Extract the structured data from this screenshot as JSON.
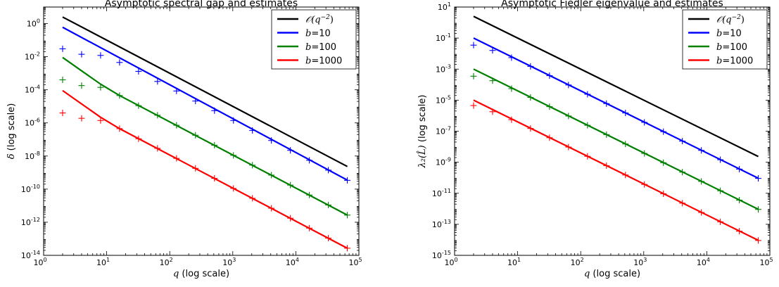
{
  "chart_data": [
    {
      "type": "line",
      "title": "Asymptotic spectral gap and estimates",
      "xlabel_var": "q",
      "xlabel_suffix": " (log scale)",
      "ylabel_var": "δ",
      "ylabel_suffix": " (log scale)",
      "xscale": "log",
      "yscale": "log",
      "xlim": [
        1,
        100000
      ],
      "ylim": [
        1e-14,
        10
      ],
      "x_ticks": [
        1,
        10,
        100,
        1000,
        10000,
        100000
      ],
      "x_tick_exps": [
        "0",
        "1",
        "2",
        "3",
        "4",
        "5"
      ],
      "y_ticks": [
        1,
        0.01,
        0.0001,
        1e-06,
        1e-08,
        1e-10,
        1e-12,
        1e-14
      ],
      "y_tick_exps": [
        "0",
        "-2",
        "-4",
        "-6",
        "-8",
        "-10",
        "-12",
        "-14"
      ],
      "legend_position": "top-right",
      "series": [
        {
          "name": "O(q^-2)",
          "legend_main": "𝒪(q",
          "legend_sup": "−2",
          "legend_tail": ")",
          "color": "#000000",
          "kind": "line",
          "x": [
            2,
            65536
          ],
          "y": [
            2.5,
            2.33e-09
          ]
        },
        {
          "name": "b=10",
          "legend_main": "b",
          "legend_sup": "",
          "legend_tail": "=10",
          "color": "#0000ff",
          "kind": "line",
          "x": [
            2,
            65536
          ],
          "y": [
            0.6,
            3.5e-10
          ]
        },
        {
          "name": "b=100",
          "legend_main": "b",
          "legend_sup": "",
          "legend_tail": "=100",
          "color": "#008000",
          "kind": "line",
          "x": [
            2,
            4,
            8,
            16,
            65536
          ],
          "y": [
            0.009,
            0.0014,
            0.00022,
            4.5e-05,
            2.7e-12
          ]
        },
        {
          "name": "b=1000",
          "legend_main": "b",
          "legend_sup": "",
          "legend_tail": "=1000",
          "color": "#ff0000",
          "kind": "line",
          "x": [
            2,
            4,
            8,
            16,
            65536
          ],
          "y": [
            9e-05,
            1.4e-05,
            2.2e-06,
            4.5e-07,
            2.7e-14
          ]
        }
      ],
      "markers": [
        {
          "color": "#0000ff",
          "x": [
            2,
            4,
            8,
            16,
            32,
            64,
            128,
            256,
            512,
            1024,
            2048,
            4096,
            8192,
            16384,
            32768,
            65536
          ],
          "y": [
            0.03,
            0.014,
            0.012,
            0.0045,
            0.0013,
            0.00032,
            8.5e-05,
            2.1e-05,
            5.5e-06,
            1.4e-06,
            3.5e-07,
            8.7e-08,
            2.2e-08,
            5.5e-09,
            1.4e-09,
            3.4e-10
          ]
        },
        {
          "color": "#008000",
          "x": [
            2,
            4,
            8,
            16,
            32,
            64,
            128,
            256,
            512,
            1024,
            2048,
            4096,
            8192,
            16384,
            32768,
            65536
          ],
          "y": [
            0.0004,
            0.00018,
            0.00014,
            4.5e-05,
            1.1e-05,
            2.9e-06,
            7.2e-07,
            1.8e-07,
            4.5e-08,
            1.1e-08,
            2.8e-09,
            7e-10,
            1.75e-10,
            4.4e-11,
            1.1e-11,
            2.7e-12
          ]
        },
        {
          "color": "#ff0000",
          "x": [
            2,
            4,
            8,
            16,
            32,
            64,
            128,
            256,
            512,
            1024,
            2048,
            4096,
            8192,
            16384,
            32768,
            65536
          ],
          "y": [
            4e-06,
            1.9e-06,
            1.4e-06,
            4.5e-07,
            1.1e-07,
            2.9e-08,
            7.2e-09,
            1.8e-09,
            4.5e-10,
            1.1e-10,
            2.8e-11,
            7e-12,
            1.75e-12,
            4.4e-13,
            1.1e-13,
            2.7e-14
          ]
        }
      ]
    },
    {
      "type": "line",
      "title": "Asymptotic Fiedler eigenvalue and estimates",
      "xlabel_var": "q",
      "xlabel_suffix": " (log scale)",
      "ylabel_var": "λ₂(L̂)",
      "ylabel_suffix": " (log scale)",
      "xscale": "log",
      "yscale": "log",
      "xlim": [
        1,
        100000
      ],
      "ylim": [
        1e-15,
        10
      ],
      "x_ticks": [
        1,
        10,
        100,
        1000,
        10000,
        100000
      ],
      "x_tick_exps": [
        "0",
        "1",
        "2",
        "3",
        "4",
        "5"
      ],
      "y_ticks": [
        10,
        0.1,
        0.001,
        1e-05,
        1e-07,
        1e-09,
        1e-11,
        1e-13,
        1e-15
      ],
      "y_tick_exps": [
        "1",
        "-1",
        "-3",
        "-5",
        "-7",
        "-9",
        "-11",
        "-13",
        "-15"
      ],
      "legend_position": "top-right",
      "series": [
        {
          "name": "O(q^-2)",
          "legend_main": "𝒪(q",
          "legend_sup": "−2",
          "legend_tail": ")",
          "color": "#000000",
          "kind": "line",
          "x": [
            2,
            65536
          ],
          "y": [
            2.5,
            2.33e-09
          ]
        },
        {
          "name": "b=10",
          "legend_main": "b",
          "legend_sup": "",
          "legend_tail": "=10",
          "color": "#0000ff",
          "kind": "line",
          "x": [
            2,
            65536
          ],
          "y": [
            0.1,
            9.3e-11
          ]
        },
        {
          "name": "b=100",
          "legend_main": "b",
          "legend_sup": "",
          "legend_tail": "=100",
          "color": "#008000",
          "kind": "line",
          "x": [
            2,
            65536
          ],
          "y": [
            0.001,
            9.3e-13
          ]
        },
        {
          "name": "b=1000",
          "legend_main": "b",
          "legend_sup": "",
          "legend_tail": "=1000",
          "color": "#ff0000",
          "kind": "line",
          "x": [
            2,
            65536
          ],
          "y": [
            1e-05,
            9.3e-15
          ]
        }
      ],
      "markers": [
        {
          "color": "#0000ff",
          "x": [
            2,
            4,
            8,
            16,
            32,
            64,
            128,
            256,
            512,
            1024,
            2048,
            4096,
            8192,
            16384,
            32768,
            65536
          ],
          "y": [
            0.035,
            0.016,
            0.0055,
            0.0015,
            0.00038,
            9.5e-05,
            2.4e-05,
            6e-06,
            1.5e-06,
            3.7e-07,
            9.3e-08,
            2.3e-08,
            5.8e-09,
            1.45e-09,
            3.6e-10,
            9.1e-11
          ]
        },
        {
          "color": "#008000",
          "x": [
            2,
            4,
            8,
            16,
            32,
            64,
            128,
            256,
            512,
            1024,
            2048,
            4096,
            8192,
            16384,
            32768,
            65536
          ],
          "y": [
            0.00035,
            0.00018,
            5.5e-05,
            1.5e-05,
            3.8e-06,
            9.5e-07,
            2.4e-07,
            6e-08,
            1.5e-08,
            3.7e-09,
            9.3e-10,
            2.3e-10,
            5.8e-11,
            1.45e-11,
            3.6e-12,
            9.1e-13
          ]
        },
        {
          "color": "#ff0000",
          "x": [
            2,
            4,
            8,
            16,
            32,
            64,
            128,
            256,
            512,
            1024,
            2048,
            4096,
            8192,
            16384,
            32768,
            65536
          ],
          "y": [
            4.5e-06,
            1.8e-06,
            5.5e-07,
            1.5e-07,
            3.8e-08,
            9.5e-09,
            2.4e-09,
            6e-10,
            1.5e-10,
            3.7e-11,
            9.3e-12,
            2.3e-12,
            5.8e-13,
            1.45e-13,
            3.6e-14,
            9.1e-15
          ]
        }
      ]
    }
  ]
}
